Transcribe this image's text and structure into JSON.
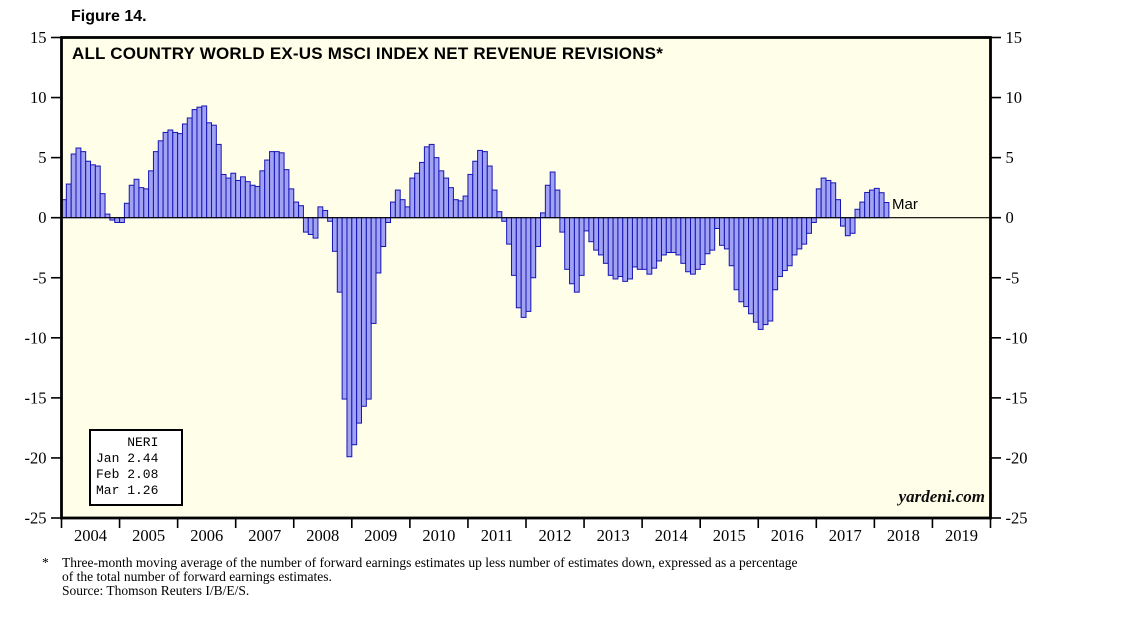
{
  "figure_label": "Figure 14.",
  "watermark": "yardeni.com",
  "latest_point_label": "Mar",
  "legend": {
    "lines": [
      "    NERI",
      "Jan 2.44",
      "Feb 2.08",
      "Mar 1.26"
    ]
  },
  "footnote": {
    "star": "*",
    "line1": "Three-month moving average of the number of forward earnings estimates up less number of estimates down, expressed as a percentage",
    "line2": "of the total number of forward earnings estimates.",
    "line3": "Source: Thomson Reuters I/B/E/S."
  },
  "colors": {
    "plot_background": "#fffee8",
    "bar_fill": "#a2a2f2",
    "bar_border": "#1515b5",
    "frame": "#000000"
  },
  "chart_data": {
    "type": "bar",
    "title": "ALL COUNTRY WORLD EX-US MSCI INDEX NET REVENUE REVISIONS*",
    "ylabel": "",
    "xlabel": "",
    "ylim": [
      -25,
      15
    ],
    "y_ticks": [
      15,
      10,
      5,
      0,
      -5,
      -10,
      -15,
      -20,
      -25
    ],
    "x_year_labels": [
      "2004",
      "2005",
      "2006",
      "2007",
      "2008",
      "2009",
      "2010",
      "2011",
      "2012",
      "2013",
      "2014",
      "2015",
      "2016",
      "2017",
      "2018",
      "2019"
    ],
    "x_axis_years_span": 16,
    "grid": false,
    "legend_position": "bottom-left-inside",
    "series_name": "NERI",
    "years": [
      "2004",
      "2005",
      "2006",
      "2007",
      "2008",
      "2009",
      "2010",
      "2011",
      "2012",
      "2013",
      "2014",
      "2015",
      "2016",
      "2017",
      "2018"
    ],
    "monthly_values_by_year": {
      "2004": [
        1.5,
        2.8,
        5.3,
        5.8,
        5.5,
        4.7,
        4.4,
        4.3,
        2.0,
        0.3,
        -0.2,
        -0.4
      ],
      "2005": [
        -0.4,
        1.2,
        2.7,
        3.2,
        2.5,
        2.4,
        3.9,
        5.5,
        6.4,
        7.1,
        7.3,
        7.1
      ],
      "2006": [
        7.0,
        7.8,
        8.3,
        9.0,
        9.2,
        9.3,
        7.9,
        7.7,
        6.1,
        3.6,
        3.3,
        3.7
      ],
      "2007": [
        3.1,
        3.4,
        3.0,
        2.7,
        2.6,
        3.9,
        4.8,
        5.5,
        5.5,
        5.4,
        4.0,
        2.4
      ],
      "2008": [
        1.3,
        1.0,
        -1.2,
        -1.4,
        -1.7,
        0.9,
        0.6,
        -0.3,
        -2.8,
        -6.2,
        -15.1,
        -19.9
      ],
      "2009": [
        -18.9,
        -17.1,
        -15.7,
        -15.1,
        -8.8,
        -4.6,
        -2.4,
        -0.4,
        1.3,
        2.3,
        1.5,
        0.9
      ],
      "2010": [
        3.3,
        3.7,
        4.6,
        5.9,
        6.1,
        5.0,
        3.9,
        3.3,
        2.5,
        1.5,
        1.4,
        1.8
      ],
      "2011": [
        3.6,
        4.7,
        5.6,
        5.5,
        4.3,
        2.3,
        0.5,
        -0.3,
        -2.2,
        -4.8,
        -7.5,
        -8.3
      ],
      "2012": [
        -7.8,
        -5.0,
        -2.4,
        0.4,
        2.7,
        3.8,
        2.3,
        -1.2,
        -4.3,
        -5.5,
        -6.2,
        -4.8
      ],
      "2013": [
        -1.1,
        -2.0,
        -2.7,
        -3.1,
        -3.8,
        -4.8,
        -5.1,
        -4.9,
        -5.3,
        -5.1,
        -4.1,
        -4.3
      ],
      "2014": [
        -4.3,
        -4.7,
        -4.2,
        -3.6,
        -3.1,
        -2.9,
        -2.9,
        -3.1,
        -3.8,
        -4.5,
        -4.7,
        -4.3
      ],
      "2015": [
        -3.9,
        -3.0,
        -2.7,
        -0.9,
        -2.3,
        -2.6,
        -4.0,
        -6.0,
        -7.0,
        -7.4,
        -8.0,
        -8.7
      ],
      "2016": [
        -9.3,
        -8.9,
        -8.6,
        -6.0,
        -4.9,
        -4.4,
        -4.0,
        -3.1,
        -2.6,
        -2.2,
        -1.3,
        -0.4
      ],
      "2017": [
        2.4,
        3.3,
        3.1,
        2.9,
        1.5,
        -0.7,
        -1.5,
        -1.3,
        0.7,
        1.3,
        2.1,
        2.3
      ],
      "2018": [
        2.44,
        2.08,
        1.26
      ]
    },
    "latest_values": {
      "Jan": 2.44,
      "Feb": 2.08,
      "Mar": 1.26
    }
  }
}
